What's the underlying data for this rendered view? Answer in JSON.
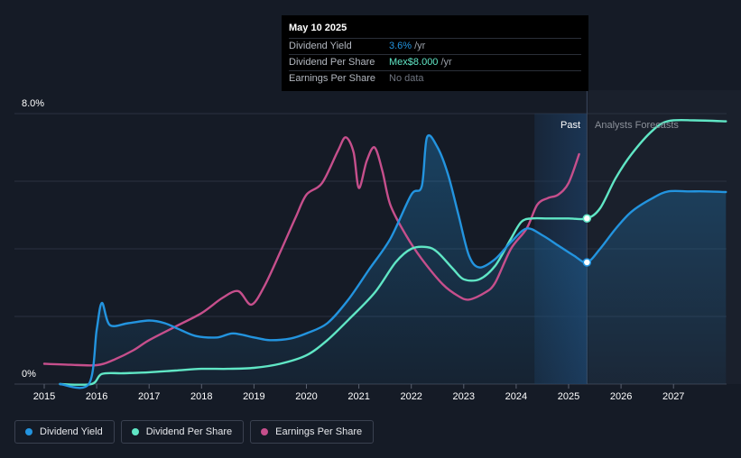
{
  "tooltip": {
    "date": "May 10 2025",
    "rows": [
      {
        "name": "Dividend Yield",
        "value": "3.6%",
        "suffix": "/yr"
      },
      {
        "name": "Dividend Per Share",
        "value": "Mex$8.000",
        "suffix": "/yr"
      },
      {
        "name": "Earnings Per Share",
        "value": "No data"
      }
    ]
  },
  "regions": {
    "past": "Past",
    "forecast": "Analysts Forecasts"
  },
  "legend": [
    {
      "label": "Dividend Yield",
      "color": "#2394df"
    },
    {
      "label": "Dividend Per Share",
      "color": "#60e6c5"
    },
    {
      "label": "Earnings Per Share",
      "color": "#c64f8c"
    }
  ],
  "chart_data": {
    "type": "line",
    "title": "",
    "y_labels": [
      "8.0%",
      "0%"
    ],
    "ylim": [
      0,
      8
    ],
    "xlim": [
      2014.5,
      2028.0
    ],
    "x_ticks": [
      2015,
      2016,
      2017,
      2018,
      2019,
      2020,
      2021,
      2022,
      2023,
      2024,
      2025,
      2026,
      2027
    ],
    "past_region": [
      2024.35,
      2025.35
    ],
    "marker_x": 2025.35,
    "series": [
      {
        "name": "Dividend Yield",
        "color": "#2394df",
        "points": [
          [
            2015.3,
            0
          ],
          [
            2015.85,
            0
          ],
          [
            2016.0,
            1.6
          ],
          [
            2016.1,
            2.4
          ],
          [
            2016.25,
            1.75
          ],
          [
            2016.6,
            1.8
          ],
          [
            2017.0,
            1.88
          ],
          [
            2017.3,
            1.8
          ],
          [
            2017.6,
            1.6
          ],
          [
            2017.9,
            1.42
          ],
          [
            2018.3,
            1.38
          ],
          [
            2018.6,
            1.5
          ],
          [
            2019.0,
            1.38
          ],
          [
            2019.3,
            1.3
          ],
          [
            2019.7,
            1.35
          ],
          [
            2020.0,
            1.5
          ],
          [
            2020.4,
            1.8
          ],
          [
            2020.8,
            2.5
          ],
          [
            2021.2,
            3.4
          ],
          [
            2021.6,
            4.3
          ],
          [
            2022.0,
            5.6
          ],
          [
            2022.2,
            5.85
          ],
          [
            2022.3,
            7.3
          ],
          [
            2022.5,
            7.0
          ],
          [
            2022.7,
            6.2
          ],
          [
            2022.9,
            5.0
          ],
          [
            2023.1,
            3.8
          ],
          [
            2023.3,
            3.45
          ],
          [
            2023.6,
            3.7
          ],
          [
            2023.9,
            4.2
          ],
          [
            2024.2,
            4.6
          ],
          [
            2024.5,
            4.4
          ],
          [
            2024.8,
            4.1
          ],
          [
            2025.1,
            3.8
          ],
          [
            2025.35,
            3.6
          ],
          [
            2025.6,
            4.0
          ],
          [
            2025.9,
            4.6
          ],
          [
            2026.2,
            5.1
          ],
          [
            2026.6,
            5.5
          ],
          [
            2026.9,
            5.7
          ],
          [
            2027.3,
            5.7
          ],
          [
            2027.6,
            5.7
          ],
          [
            2028.0,
            5.68
          ]
        ]
      },
      {
        "name": "Dividend Per Share",
        "color": "#60e6c5",
        "points": [
          [
            2015.3,
            0
          ],
          [
            2015.9,
            0
          ],
          [
            2016.1,
            0.3
          ],
          [
            2016.5,
            0.32
          ],
          [
            2017.0,
            0.35
          ],
          [
            2017.5,
            0.4
          ],
          [
            2018.0,
            0.45
          ],
          [
            2018.5,
            0.45
          ],
          [
            2019.0,
            0.48
          ],
          [
            2019.5,
            0.6
          ],
          [
            2020.0,
            0.85
          ],
          [
            2020.4,
            1.3
          ],
          [
            2020.8,
            1.9
          ],
          [
            2021.3,
            2.7
          ],
          [
            2021.7,
            3.6
          ],
          [
            2022.0,
            4.0
          ],
          [
            2022.3,
            4.05
          ],
          [
            2022.5,
            3.9
          ],
          [
            2022.8,
            3.4
          ],
          [
            2023.0,
            3.1
          ],
          [
            2023.3,
            3.1
          ],
          [
            2023.6,
            3.5
          ],
          [
            2023.9,
            4.3
          ],
          [
            2024.1,
            4.8
          ],
          [
            2024.3,
            4.9
          ],
          [
            2024.6,
            4.9
          ],
          [
            2025.0,
            4.9
          ],
          [
            2025.35,
            4.9
          ],
          [
            2025.6,
            5.2
          ],
          [
            2025.9,
            6.1
          ],
          [
            2026.2,
            6.8
          ],
          [
            2026.6,
            7.5
          ],
          [
            2026.9,
            7.78
          ],
          [
            2027.4,
            7.8
          ],
          [
            2028.0,
            7.77
          ]
        ]
      },
      {
        "name": "Earnings Per Share",
        "color": "#c64f8c",
        "points": [
          [
            2015.0,
            0.6
          ],
          [
            2015.5,
            0.57
          ],
          [
            2016.0,
            0.56
          ],
          [
            2016.3,
            0.7
          ],
          [
            2016.7,
            1.0
          ],
          [
            2017.0,
            1.3
          ],
          [
            2017.5,
            1.7
          ],
          [
            2018.0,
            2.1
          ],
          [
            2018.4,
            2.55
          ],
          [
            2018.7,
            2.75
          ],
          [
            2018.95,
            2.35
          ],
          [
            2019.2,
            2.9
          ],
          [
            2019.5,
            3.9
          ],
          [
            2019.8,
            4.95
          ],
          [
            2020.0,
            5.6
          ],
          [
            2020.3,
            5.95
          ],
          [
            2020.6,
            6.9
          ],
          [
            2020.75,
            7.3
          ],
          [
            2020.9,
            6.85
          ],
          [
            2021.0,
            5.8
          ],
          [
            2021.15,
            6.6
          ],
          [
            2021.3,
            7.0
          ],
          [
            2021.45,
            6.3
          ],
          [
            2021.6,
            5.3
          ],
          [
            2021.9,
            4.4
          ],
          [
            2022.2,
            3.7
          ],
          [
            2022.6,
            2.95
          ],
          [
            2022.9,
            2.6
          ],
          [
            2023.1,
            2.5
          ],
          [
            2023.4,
            2.7
          ],
          [
            2023.6,
            3.0
          ],
          [
            2023.9,
            4.0
          ],
          [
            2024.2,
            4.6
          ],
          [
            2024.4,
            5.3
          ],
          [
            2024.6,
            5.5
          ],
          [
            2024.8,
            5.6
          ],
          [
            2025.0,
            5.95
          ],
          [
            2025.2,
            6.8
          ]
        ]
      }
    ]
  }
}
